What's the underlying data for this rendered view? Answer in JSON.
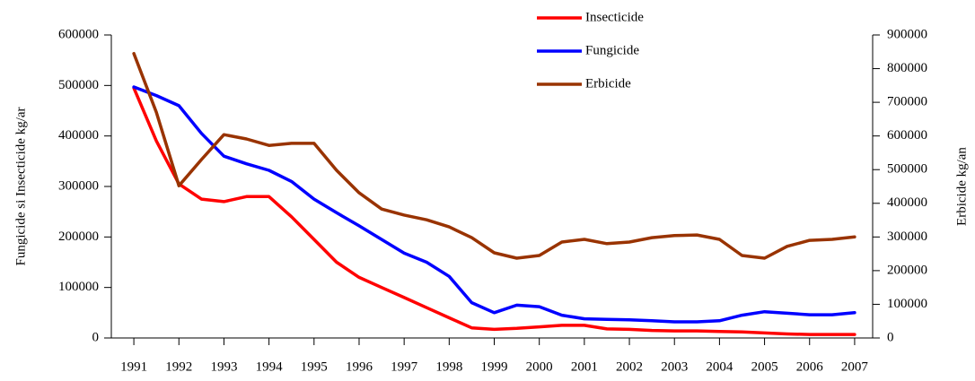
{
  "chart_data": {
    "type": "line",
    "x": [
      1991,
      1991.5,
      1992,
      1992.5,
      1993,
      1993.5,
      1994,
      1994.5,
      1995,
      1995.5,
      1996,
      1996.5,
      1997,
      1997.5,
      1998,
      1998.5,
      1999,
      1999.5,
      2000,
      2000.5,
      2001,
      2001.5,
      2002,
      2002.5,
      2003,
      2003.5,
      2004,
      2004.5,
      2005,
      2005.5,
      2006,
      2006.5,
      2007
    ],
    "series": [
      {
        "name": "Insecticide",
        "color": "#ff0000",
        "values": [
          495000,
          390000,
          305000,
          275000,
          270000,
          280000,
          280000,
          240000,
          195000,
          150000,
          120000,
          100000,
          80000,
          60000,
          40000,
          20000,
          17000,
          19000,
          22000,
          25000,
          25000,
          18000,
          17000,
          15000,
          14000,
          14000,
          13000,
          12000,
          10000,
          8000,
          7000,
          7000,
          7000
        ]
      },
      {
        "name": "Fungicide",
        "color": "#0000ff",
        "values": [
          497000,
          480000,
          460000,
          405000,
          360000,
          345000,
          332000,
          310000,
          275000,
          248000,
          222000,
          195000,
          168000,
          150000,
          122000,
          70000,
          50000,
          65000,
          62000,
          45000,
          38000,
          37000,
          36000,
          34000,
          32000,
          32000,
          34000,
          45000,
          52000,
          49000,
          46000,
          46000,
          50000
        ]
      },
      {
        "name": "Erbicide",
        "color": "#993300",
        "axis": "y2",
        "values": [
          845000,
          670000,
          452000,
          530000,
          604000,
          591000,
          572000,
          578000,
          578000,
          498000,
          431000,
          383000,
          365000,
          351000,
          330000,
          298000,
          253000,
          237000,
          245000,
          285000,
          293000,
          280000,
          285000,
          298000,
          304000,
          306000,
          293000,
          245000,
          237000,
          272000,
          290000,
          293000,
          300000
        ]
      }
    ],
    "xlim": [
      1990.5,
      2007.4
    ],
    "xticks": [
      1991,
      1992,
      1993,
      1994,
      1995,
      1996,
      1997,
      1998,
      1999,
      2000,
      2001,
      2002,
      2003,
      2004,
      2005,
      2006,
      2007
    ],
    "ylim": [
      0,
      600000
    ],
    "yticks": [
      0,
      100000,
      200000,
      300000,
      400000,
      500000,
      600000
    ],
    "y2lim": [
      0,
      900000
    ],
    "y2ticks": [
      0,
      100000,
      200000,
      300000,
      400000,
      500000,
      600000,
      700000,
      800000,
      900000
    ],
    "ylabel": "Fungicide si Insecticide kg/ar",
    "y2label": "Erbicide kg/an",
    "legend": "top"
  }
}
